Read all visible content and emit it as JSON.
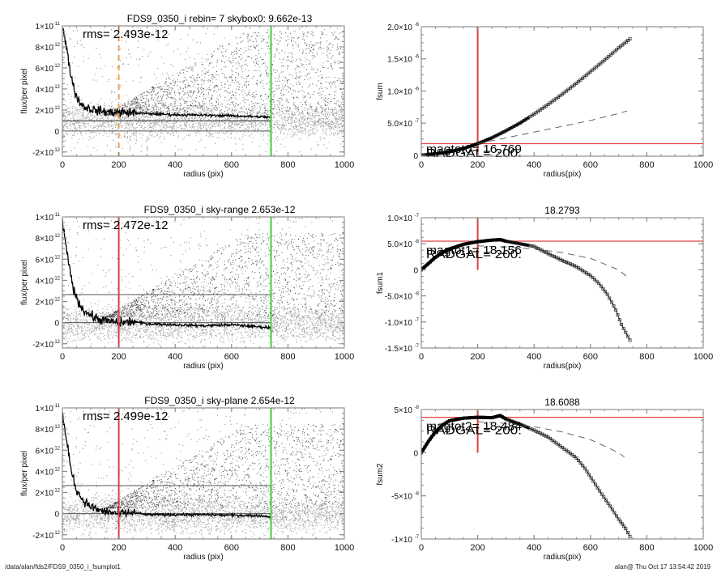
{
  "footer": {
    "path": "/data/alan/fds2/FDS9_0350_i_fsumplot1",
    "user_timestamp": "alan@  Thu Oct 17 13:54:42 2019"
  },
  "chart_data": [
    {
      "id": "profile-skybox",
      "type": "scatter",
      "title": "FDS9_0350_i rebin= 7    skybox0:  9.662e-13",
      "xlabel": "radius (pix)",
      "ylabel": "flux/per pixel",
      "xlim": [
        0,
        1000
      ],
      "ylim": [
        -2.4e-12,
        1e-11
      ],
      "xticks": [
        0,
        200,
        400,
        600,
        800,
        1000
      ],
      "yticks": [
        {
          "value": -2e-12,
          "mant": "-2×10",
          "exp": "-12"
        },
        {
          "value": 0,
          "mant": "0",
          "exp": ""
        },
        {
          "value": 2e-12,
          "mant": "2×10",
          "exp": "-12"
        },
        {
          "value": 4e-12,
          "mant": "4×10",
          "exp": "-12"
        },
        {
          "value": 6e-12,
          "mant": "6×10",
          "exp": "-12"
        },
        {
          "value": 8e-12,
          "mant": "8×10",
          "exp": "-12"
        },
        {
          "value": 1e-11,
          "mant": "1×10",
          "exp": "-11"
        }
      ],
      "annotation": "rms= 2.493e-12",
      "sky_level": 9.662e-13,
      "hlines": [
        {
          "y": 9.662e-13,
          "color": "#222222"
        },
        {
          "y": 0,
          "color": "#555555"
        }
      ],
      "vlines": [
        {
          "x": 200,
          "color": "#f0a050",
          "style": "dashed",
          "extent": "full"
        },
        {
          "x": 240,
          "color": "#bbbbbb",
          "style": "dashed",
          "extent": "below-zero"
        },
        {
          "x": 300,
          "color": "#bbbbbb",
          "style": "dashed",
          "extent": "below-zero"
        },
        {
          "x": 740,
          "color": "#44cc44",
          "style": "solid",
          "extent": "full"
        }
      ],
      "profile_offset": 9.662e-13,
      "profile": {
        "x": [
          0,
          10,
          20,
          30,
          40,
          50,
          60,
          70,
          80,
          100,
          120,
          150,
          200,
          250,
          300,
          400,
          500,
          600,
          700,
          740
        ],
        "y": [
          1e-11,
          8.6e-12,
          7e-12,
          5.4e-12,
          4.2e-12,
          3.3e-12,
          2.8e-12,
          2.5e-12,
          2.3e-12,
          2.1e-12,
          1.95e-12,
          1.85e-12,
          1.75e-12,
          1.75e-12,
          1.65e-12,
          1.55e-12,
          1.5e-12,
          1.45e-12,
          1.35e-12,
          1.3e-12
        ]
      }
    },
    {
      "id": "fsum-0",
      "type": "line",
      "title": "",
      "xlabel": "radius(pix)",
      "ylabel": "fsum",
      "xlim": [
        0,
        1000
      ],
      "ylim": [
        -1.5e-08,
        2e-06
      ],
      "xticks": [
        0,
        200,
        400,
        600,
        800,
        1000
      ],
      "yticks": [
        {
          "value": 0,
          "mant": "0",
          "exp": ""
        },
        {
          "value": 5e-07,
          "mant": "5.0×10",
          "exp": "-7"
        },
        {
          "value": 1e-06,
          "mant": "1.0×10",
          "exp": "-6"
        },
        {
          "value": 1.5e-06,
          "mant": "1.5×10",
          "exp": "-6"
        },
        {
          "value": 2e-06,
          "mant": "2.0×10",
          "exp": "-6"
        }
      ],
      "labels": [
        "magtot0= 16.769",
        "RADGAL=    200."
      ],
      "crosshair": {
        "x": 200,
        "y": 1.8e-07
      },
      "series": [
        {
          "name": "fsum",
          "marker": "square",
          "x": [
            0,
            50,
            100,
            150,
            200,
            250,
            300,
            350,
            400,
            450,
            500,
            550,
            600,
            650,
            700,
            740
          ],
          "y": [
            0,
            2e-08,
            5.5e-08,
            1.05e-07,
            1.8e-07,
            2.7e-07,
            3.8e-07,
            5e-07,
            6.4e-07,
            7.9e-07,
            9.5e-07,
            1.12e-06,
            1.3e-06,
            1.48e-06,
            1.67e-06,
            1.81e-06
          ]
        },
        {
          "name": "model",
          "style": "dashed",
          "x": [
            200,
            300,
            400,
            500,
            600,
            700,
            730
          ],
          "y": [
            1.8e-07,
            2.7e-07,
            3.6e-07,
            4.5e-07,
            5.4e-07,
            6.5e-07,
            6.9e-07
          ]
        }
      ]
    },
    {
      "id": "profile-sky-range",
      "type": "scatter",
      "title": "FDS9_0350_i sky-range  2.653e-12",
      "xlabel": "radius (pix)",
      "ylabel": "flux/per pixel",
      "xlim": [
        0,
        1000
      ],
      "ylim": [
        -2.4e-12,
        1e-11
      ],
      "xticks": [
        0,
        200,
        400,
        600,
        800,
        1000
      ],
      "yticks": [
        {
          "value": -2e-12,
          "mant": "-2×10",
          "exp": "-12"
        },
        {
          "value": 0,
          "mant": "0",
          "exp": ""
        },
        {
          "value": 2e-12,
          "mant": "2×10",
          "exp": "-12"
        },
        {
          "value": 4e-12,
          "mant": "4×10",
          "exp": "-12"
        },
        {
          "value": 6e-12,
          "mant": "6×10",
          "exp": "-12"
        },
        {
          "value": 8e-12,
          "mant": "8×10",
          "exp": "-12"
        },
        {
          "value": 1e-11,
          "mant": "1×10",
          "exp": "-11"
        }
      ],
      "annotation": "rms= 2.472e-12",
      "sky_level": 2.653e-12,
      "hlines": [
        {
          "y": 2.653e-12,
          "color": "#555555"
        },
        {
          "y": 0,
          "color": "#555555"
        }
      ],
      "vlines": [
        {
          "x": 200,
          "color": "#e04040",
          "style": "solid",
          "extent": "full"
        },
        {
          "x": 740,
          "color": "#44cc44",
          "style": "solid",
          "extent": "full"
        }
      ],
      "profile_offset": 0,
      "profile": {
        "x": [
          0,
          10,
          20,
          30,
          40,
          50,
          60,
          70,
          80,
          100,
          120,
          150,
          200,
          250,
          300,
          400,
          500,
          600,
          700,
          740
        ],
        "y": [
          9.6e-12,
          7.6e-12,
          6e-12,
          4.4e-12,
          3.2e-12,
          2.3e-12,
          1.8e-12,
          1.4e-12,
          1.1e-12,
          7e-13,
          4e-13,
          2e-13,
          0,
          1e-13,
          -1e-13,
          -2e-13,
          -3e-13,
          -2e-13,
          -4e-13,
          -5e-13
        ]
      }
    },
    {
      "id": "fsum-1",
      "type": "line",
      "title": "18.2793",
      "xlabel": "radius(pix)",
      "ylabel": "fsum1",
      "xlim": [
        0,
        1000
      ],
      "ylim": [
        -1.5e-07,
        1e-07
      ],
      "xticks": [
        0,
        200,
        400,
        600,
        800,
        1000
      ],
      "yticks": [
        {
          "value": -1.5e-07,
          "mant": "-1.5×10",
          "exp": "-7"
        },
        {
          "value": -1e-07,
          "mant": "-1.0×10",
          "exp": "-7"
        },
        {
          "value": -5e-08,
          "mant": "-5.0×10",
          "exp": "-8"
        },
        {
          "value": 0,
          "mant": "0",
          "exp": ""
        },
        {
          "value": 5e-08,
          "mant": "5.0×10",
          "exp": "-8"
        },
        {
          "value": 1e-07,
          "mant": "1.0×10",
          "exp": "-7"
        }
      ],
      "labels": [
        "magtot1= 18.156",
        "RADGAL=    200."
      ],
      "crosshair": {
        "x": 200,
        "y": 5.5e-08
      },
      "series": [
        {
          "name": "fsum1",
          "marker": "square",
          "x": [
            0,
            25,
            50,
            75,
            100,
            150,
            200,
            250,
            280,
            300,
            350,
            400,
            450,
            500,
            550,
            600,
            630,
            660,
            690,
            710,
            725,
            740
          ],
          "y": [
            0,
            1.2e-08,
            2.4e-08,
            3.3e-08,
            4e-08,
            4.9e-08,
            5.4e-08,
            5.7e-08,
            5.8e-08,
            5.5e-08,
            5e-08,
            4.5e-08,
            3.1e-08,
            1.8e-08,
            6e-09,
            -1.1e-08,
            -2.6e-08,
            -4.7e-08,
            -7.7e-08,
            -1.05e-07,
            -1.2e-07,
            -1.35e-07
          ]
        },
        {
          "name": "model",
          "style": "dashed",
          "x": [
            200,
            300,
            400,
            500,
            600,
            700,
            740
          ],
          "y": [
            4.6e-08,
            4.4e-08,
            4e-08,
            3.3e-08,
            2.2e-08,
            0,
            -1.8e-08
          ]
        }
      ]
    },
    {
      "id": "profile-sky-plane",
      "type": "scatter",
      "title": "FDS9_0350_i sky-plane  2.654e-12",
      "xlabel": "radius (pix)",
      "ylabel": "flux/per pixel",
      "xlim": [
        0,
        1000
      ],
      "ylim": [
        -2.4e-12,
        1e-11
      ],
      "xticks": [
        0,
        200,
        400,
        600,
        800,
        1000
      ],
      "yticks": [
        {
          "value": -2e-12,
          "mant": "-2×10",
          "exp": "-12"
        },
        {
          "value": 0,
          "mant": "0",
          "exp": ""
        },
        {
          "value": 2e-12,
          "mant": "2×10",
          "exp": "-12"
        },
        {
          "value": 4e-12,
          "mant": "4×10",
          "exp": "-12"
        },
        {
          "value": 6e-12,
          "mant": "6×10",
          "exp": "-12"
        },
        {
          "value": 8e-12,
          "mant": "8×10",
          "exp": "-12"
        },
        {
          "value": 1e-11,
          "mant": "1×10",
          "exp": "-11"
        }
      ],
      "annotation": "rms= 2.499e-12",
      "sky_level": 2.654e-12,
      "hlines": [
        {
          "y": 2.654e-12,
          "color": "#555555"
        },
        {
          "y": 0,
          "color": "#555555"
        }
      ],
      "vlines": [
        {
          "x": 200,
          "color": "#e04040",
          "style": "solid",
          "extent": "full"
        },
        {
          "x": 740,
          "color": "#44cc44",
          "style": "solid",
          "extent": "full"
        }
      ],
      "profile_offset": 0,
      "profile": {
        "x": [
          0,
          10,
          20,
          30,
          40,
          50,
          60,
          70,
          80,
          100,
          120,
          150,
          200,
          250,
          300,
          400,
          500,
          600,
          700,
          740
        ],
        "y": [
          9.6e-12,
          7.6e-12,
          6e-12,
          4.4e-12,
          3.2e-12,
          2.3e-12,
          1.8e-12,
          1.4e-12,
          1.1e-12,
          7e-13,
          4e-13,
          2e-13,
          0,
          1e-13,
          -1e-13,
          -1e-13,
          -1e-13,
          -1.5e-13,
          -2e-13,
          -3e-13
        ]
      }
    },
    {
      "id": "fsum-2",
      "type": "line",
      "title": "18.6088",
      "xlabel": "radius(pix)",
      "ylabel": "fsum2",
      "xlim": [
        0,
        1000
      ],
      "ylim": [
        -1e-07,
        5e-08
      ],
      "xticks": [
        0,
        200,
        400,
        600,
        800,
        1000
      ],
      "yticks": [
        {
          "value": -1e-07,
          "mant": "-1×10",
          "exp": "-7"
        },
        {
          "value": -5e-08,
          "mant": "-5×10",
          "exp": "-8"
        },
        {
          "value": 0,
          "mant": "0",
          "exp": ""
        },
        {
          "value": 5e-08,
          "mant": "5×10",
          "exp": "-8"
        }
      ],
      "labels": [
        "magtot2= 18.484",
        "RADGAL=    200."
      ],
      "crosshair": {
        "x": 200,
        "y": 4.1e-08
      },
      "series": [
        {
          "name": "fsum2",
          "marker": "square",
          "x": [
            0,
            25,
            50,
            75,
            100,
            150,
            200,
            250,
            280,
            300,
            350,
            400,
            450,
            500,
            550,
            580,
            610,
            640,
            670,
            700,
            725,
            740
          ],
          "y": [
            0,
            1.3e-08,
            2.4e-08,
            3.2e-08,
            3.7e-08,
            4e-08,
            4.1e-08,
            4.05e-08,
            4.3e-08,
            3.9e-08,
            3.3e-08,
            2.6e-08,
            1.8e-08,
            6e-09,
            -6e-09,
            -1.8e-08,
            -3.3e-08,
            -4.8e-08,
            -6.2e-08,
            -7.7e-08,
            -8.8e-08,
            -9.7e-08
          ]
        },
        {
          "name": "model",
          "style": "dashed",
          "x": [
            200,
            300,
            400,
            500,
            600,
            700,
            720
          ],
          "y": [
            3.6e-08,
            3.4e-08,
            3e-08,
            2.4e-08,
            1.5e-08,
            0,
            -5e-09
          ]
        }
      ]
    }
  ]
}
